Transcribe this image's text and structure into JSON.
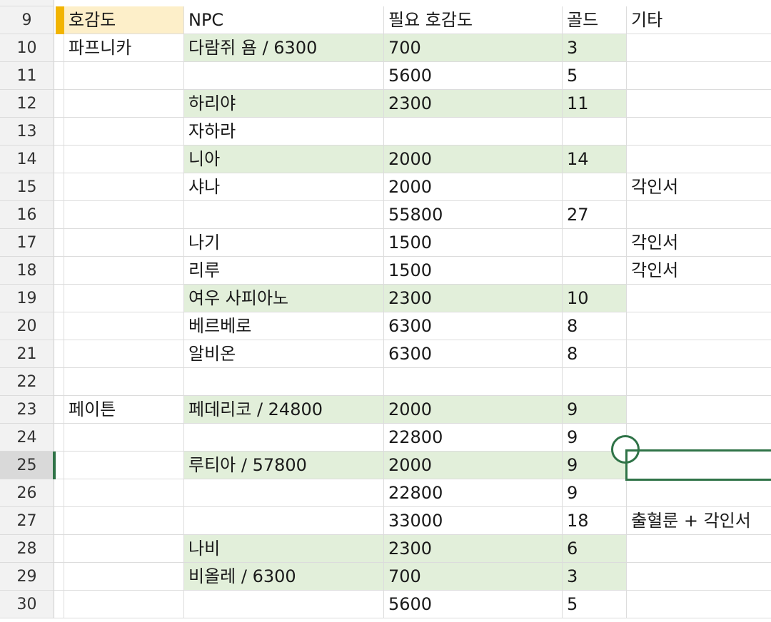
{
  "rows": [
    {
      "num": "9",
      "a": "호감도",
      "b": "NPC",
      "c": "필요 호감도",
      "d": "골드",
      "e": "기타",
      "green": false
    },
    {
      "num": "10",
      "a": "파프니카",
      "b": "다람쥐 욤 / 6300",
      "c": "700",
      "d": "3",
      "e": "",
      "green": true
    },
    {
      "num": "11",
      "a": "",
      "b": "",
      "c": "5600",
      "d": "5",
      "e": "",
      "green": false
    },
    {
      "num": "12",
      "a": "",
      "b": "하리야",
      "c": "2300",
      "d": "11",
      "e": "",
      "green": true
    },
    {
      "num": "13",
      "a": "",
      "b": "자하라",
      "c": "",
      "d": "",
      "e": "",
      "green": false
    },
    {
      "num": "14",
      "a": "",
      "b": "니아",
      "c": "2000",
      "d": "14",
      "e": "",
      "green": true
    },
    {
      "num": "15",
      "a": "",
      "b": "샤나",
      "c": "2000",
      "d": "",
      "e": "각인서",
      "green": false
    },
    {
      "num": "16",
      "a": "",
      "b": "",
      "c": "55800",
      "d": "27",
      "e": "",
      "green": false
    },
    {
      "num": "17",
      "a": "",
      "b": "나기",
      "c": "1500",
      "d": "",
      "e": "각인서",
      "green": false
    },
    {
      "num": "18",
      "a": "",
      "b": "리루",
      "c": "1500",
      "d": "",
      "e": "각인서",
      "green": false
    },
    {
      "num": "19",
      "a": "",
      "b": "여우 사피아노",
      "c": "2300",
      "d": "10",
      "e": "",
      "green": true
    },
    {
      "num": "20",
      "a": "",
      "b": "베르베로",
      "c": "6300",
      "d": "8",
      "e": "",
      "green": false
    },
    {
      "num": "21",
      "a": "",
      "b": "알비온",
      "c": "6300",
      "d": "8",
      "e": "",
      "green": false
    },
    {
      "num": "22",
      "a": "",
      "b": "",
      "c": "",
      "d": "",
      "e": "",
      "green": false
    },
    {
      "num": "23",
      "a": "페이튼",
      "b": "페데리코 / 24800",
      "c": "2000",
      "d": "9",
      "e": "",
      "green": true
    },
    {
      "num": "24",
      "a": "",
      "b": "",
      "c": "22800",
      "d": "9",
      "e": "",
      "green": false
    },
    {
      "num": "25",
      "a": "",
      "b": "루티아 / 57800",
      "c": "2000",
      "d": "9",
      "e": "",
      "green": true
    },
    {
      "num": "26",
      "a": "",
      "b": "",
      "c": "22800",
      "d": "9",
      "e": "",
      "green": false
    },
    {
      "num": "27",
      "a": "",
      "b": "",
      "c": "33000",
      "d": "18",
      "e": "출혈룬 + 각인서",
      "green": false
    },
    {
      "num": "28",
      "a": "",
      "b": "나비",
      "c": "2300",
      "d": "6",
      "e": "",
      "green": true
    },
    {
      "num": "29",
      "a": "",
      "b": "비올레 / 6300",
      "c": "700",
      "d": "3",
      "e": "",
      "green": true
    },
    {
      "num": "30",
      "a": "",
      "b": "",
      "c": "5600",
      "d": "5",
      "e": "",
      "green": false
    }
  ],
  "selected_row": "25",
  "colors": {
    "green_fill": "#e2efda",
    "header_fill": "#fdefc9",
    "selection": "#2f7347",
    "marker": "#f2b400"
  }
}
